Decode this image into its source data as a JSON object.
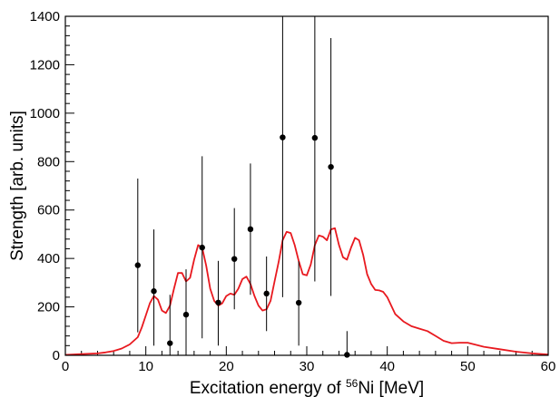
{
  "chart_data": {
    "type": "scatter",
    "xlabel_parts": [
      "Excitation energy of ",
      "56",
      "Ni [MeV]"
    ],
    "ylabel": "Strength [arb. units]",
    "xlim": [
      0,
      60
    ],
    "ylim": [
      0,
      1400
    ],
    "x_ticks": [
      0,
      10,
      20,
      30,
      40,
      50,
      60
    ],
    "x_tick_labels": [
      "0",
      "10",
      "20",
      "30",
      "40",
      "50",
      "60"
    ],
    "y_ticks": [
      0,
      200,
      400,
      600,
      800,
      1000,
      1200,
      1400
    ],
    "y_tick_labels": [
      "0",
      "200",
      "400",
      "600",
      "800",
      "1000",
      "1200",
      "1400"
    ],
    "grid": false,
    "colors": {
      "curve": "#e8191f",
      "points": "#000000",
      "axes": "#000000"
    },
    "series": [
      {
        "type": "points_with_errorbars",
        "points": [
          {
            "x": 9,
            "y": 372,
            "lo": 95,
            "hi": 730
          },
          {
            "x": 11,
            "y": 265,
            "lo": 40,
            "hi": 520
          },
          {
            "x": 13,
            "y": 50,
            "lo": 0,
            "hi": 250
          },
          {
            "x": 15,
            "y": 168,
            "lo": 0,
            "hi": 355
          },
          {
            "x": 17,
            "y": 445,
            "lo": 70,
            "hi": 822
          },
          {
            "x": 19,
            "y": 218,
            "lo": 40,
            "hi": 390
          },
          {
            "x": 21,
            "y": 398,
            "lo": 190,
            "hi": 608
          },
          {
            "x": 23,
            "y": 521,
            "lo": 250,
            "hi": 792
          },
          {
            "x": 25,
            "y": 255,
            "lo": 100,
            "hi": 408
          },
          {
            "x": 27,
            "y": 900,
            "lo": 240,
            "hi": 1400
          },
          {
            "x": 29,
            "y": 217,
            "lo": 40,
            "hi": 388
          },
          {
            "x": 31,
            "y": 898,
            "lo": 305,
            "hi": 1400
          },
          {
            "x": 33,
            "y": 778,
            "lo": 245,
            "hi": 1310
          },
          {
            "x": 35,
            "y": 2,
            "lo": 0,
            "hi": 100
          }
        ]
      },
      {
        "type": "line",
        "x": [
          0,
          2,
          4,
          5,
          6,
          7,
          8,
          9,
          9.5,
          10,
          10.5,
          11,
          11.5,
          12,
          12.5,
          13,
          13.5,
          14,
          14.5,
          15,
          15.5,
          16,
          16.5,
          17,
          17.5,
          18,
          18.5,
          19,
          19.5,
          20,
          20.5,
          21,
          21.5,
          22,
          22.5,
          23,
          23.5,
          24,
          24.5,
          25,
          25.5,
          26,
          26.5,
          27,
          27.5,
          28,
          28.5,
          29,
          29.5,
          30,
          30.5,
          31,
          31.5,
          32,
          32.5,
          33,
          33.5,
          34,
          34.5,
          35,
          35.5,
          36,
          36.5,
          37,
          37.5,
          38,
          38.5,
          39,
          39.5,
          40,
          41,
          42,
          43,
          44,
          45,
          46,
          47,
          48,
          49,
          50,
          52,
          54,
          56,
          58,
          60
        ],
        "y": [
          2,
          5,
          8,
          12,
          18,
          28,
          45,
          75,
          115,
          165,
          215,
          245,
          230,
          185,
          175,
          205,
          275,
          340,
          340,
          305,
          320,
          395,
          455,
          445,
          370,
          275,
          225,
          205,
          215,
          245,
          255,
          250,
          275,
          315,
          325,
          295,
          245,
          205,
          185,
          190,
          225,
          305,
          385,
          475,
          510,
          505,
          455,
          390,
          335,
          330,
          375,
          455,
          495,
          490,
          475,
          520,
          525,
          455,
          405,
          395,
          445,
          485,
          475,
          415,
          335,
          295,
          270,
          268,
          262,
          240,
          170,
          140,
          120,
          110,
          100,
          80,
          60,
          50,
          52,
          52,
          35,
          25,
          15,
          8,
          3
        ]
      }
    ]
  }
}
